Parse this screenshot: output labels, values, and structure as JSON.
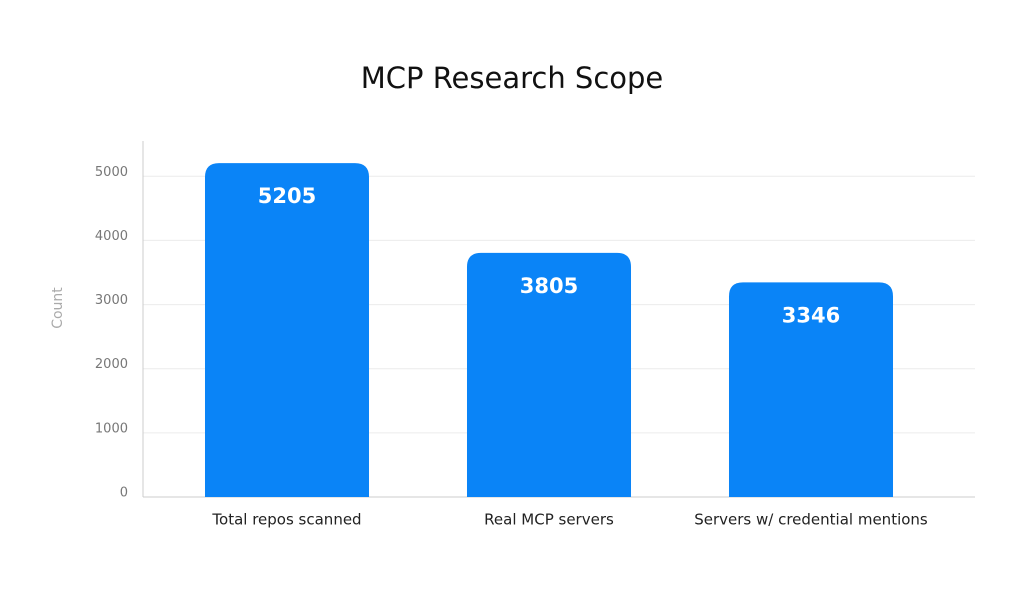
{
  "chart_data": {
    "type": "bar",
    "title": "MCP Research Scope",
    "y_label": "Count",
    "categories": [
      "Total repos scanned",
      "Real MCP servers",
      "Servers w/ credential mentions"
    ],
    "values": [
      5205,
      3805,
      3346
    ],
    "color": "#0a84f7",
    "ylim": [
      0,
      5550
    ],
    "yticks": [
      0,
      1000,
      2000,
      3000,
      4000,
      5000
    ],
    "grid": true
  }
}
